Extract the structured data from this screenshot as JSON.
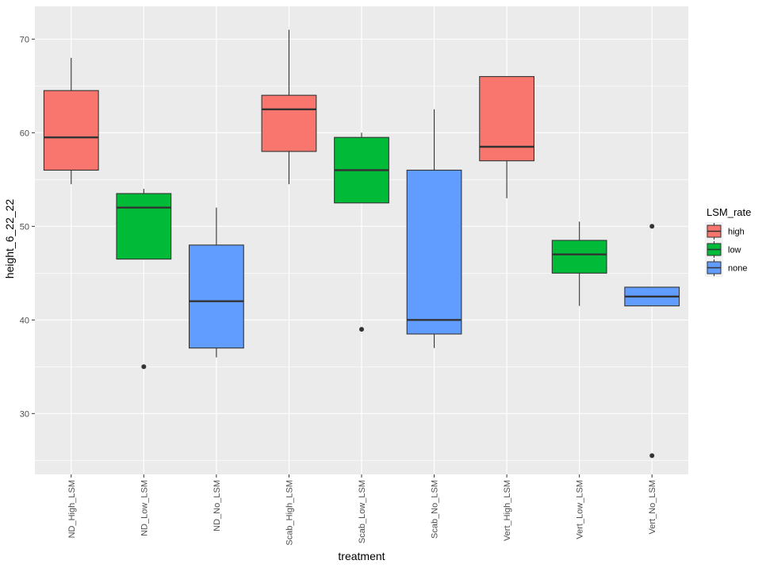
{
  "chart_data": {
    "type": "boxplot",
    "xlabel": "treatment",
    "ylabel": "height_6_22_22",
    "ylim": [
      23.5,
      73.5
    ],
    "y_ticks": [
      30,
      40,
      50,
      60,
      70
    ],
    "y_tick_labels": [
      "30",
      "40",
      "50",
      "60",
      "70"
    ],
    "categories": [
      "ND_High_LSM",
      "ND_Low_LSM",
      "ND_No_LSM",
      "Scab_High_LSM",
      "Scab_Low_LSM",
      "Scab_No_LSM",
      "Vert_High_LSM",
      "Vert_Low_LSM",
      "Vert_No_LSM"
    ],
    "legend": {
      "title": "LSM_rate",
      "position": "right",
      "entries": [
        {
          "label": "high",
          "color": "#F8766D"
        },
        {
          "label": "low",
          "color": "#00BA38"
        },
        {
          "label": "none",
          "color": "#619CFF"
        }
      ]
    },
    "boxes": [
      {
        "category": "ND_High_LSM",
        "group": "high",
        "whisker_low": 54.5,
        "q1": 56,
        "median": 59.5,
        "q3": 64.5,
        "whisker_high": 68,
        "outliers": []
      },
      {
        "category": "ND_Low_LSM",
        "group": "low",
        "whisker_low": 46.5,
        "q1": 46.5,
        "median": 52,
        "q3": 53.5,
        "whisker_high": 54,
        "outliers": [
          35
        ]
      },
      {
        "category": "ND_No_LSM",
        "group": "none",
        "whisker_low": 36,
        "q1": 37,
        "median": 42,
        "q3": 48,
        "whisker_high": 52,
        "outliers": []
      },
      {
        "category": "Scab_High_LSM",
        "group": "high",
        "whisker_low": 54.5,
        "q1": 58,
        "median": 62.5,
        "q3": 64,
        "whisker_high": 71,
        "outliers": []
      },
      {
        "category": "Scab_Low_LSM",
        "group": "low",
        "whisker_low": 52.5,
        "q1": 52.5,
        "median": 56,
        "q3": 59.5,
        "whisker_high": 60,
        "outliers": [
          39
        ]
      },
      {
        "category": "Scab_No_LSM",
        "group": "none",
        "whisker_low": 37,
        "q1": 38.5,
        "median": 40,
        "q3": 56,
        "whisker_high": 62.5,
        "outliers": []
      },
      {
        "category": "Vert_High_LSM",
        "group": "high",
        "whisker_low": 53,
        "q1": 57,
        "median": 58.5,
        "q3": 66,
        "whisker_high": 66,
        "outliers": []
      },
      {
        "category": "Vert_Low_LSM",
        "group": "low",
        "whisker_low": 41.5,
        "q1": 45,
        "median": 47,
        "q3": 48.5,
        "whisker_high": 50.5,
        "outliers": []
      },
      {
        "category": "Vert_No_LSM",
        "group": "none",
        "whisker_low": 41.5,
        "q1": 41.5,
        "median": 42.5,
        "q3": 43.5,
        "whisker_high": 43.5,
        "outliers": [
          50,
          25.5
        ]
      }
    ],
    "grid": true,
    "panel_background": "#EBEBEB",
    "grid_color": "#FFFFFF"
  }
}
